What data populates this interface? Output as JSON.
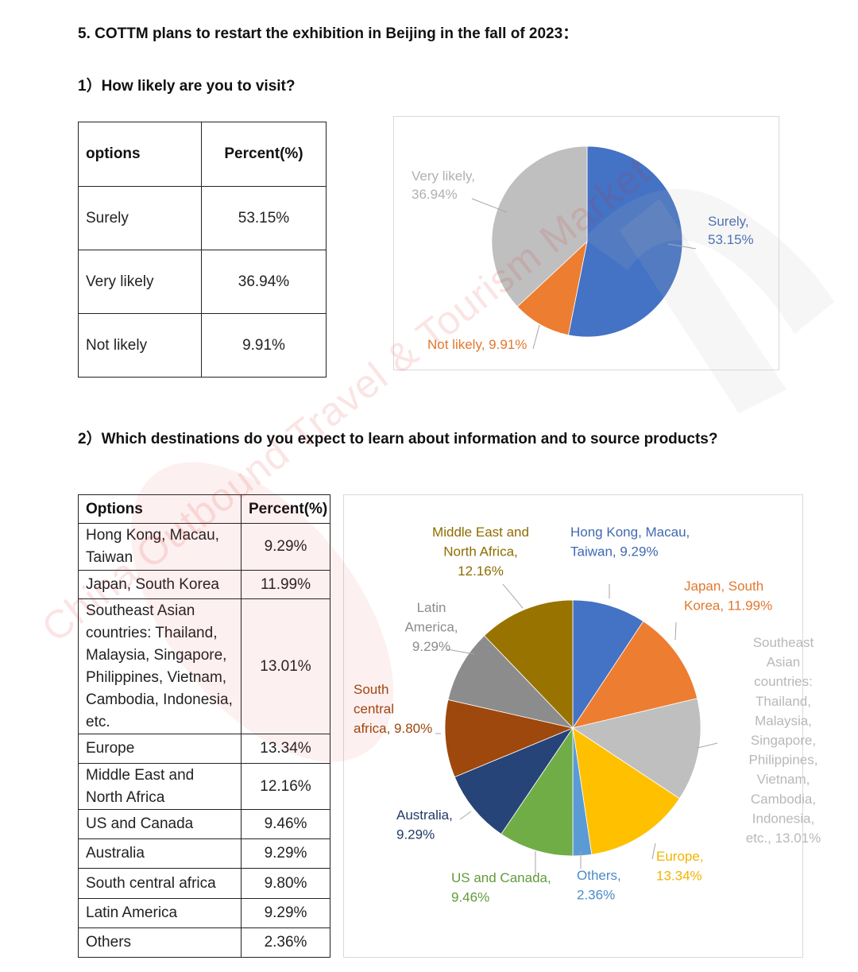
{
  "heading": "5. COTTM plans to restart the exhibition in Beijing in the fall of 2023：",
  "section1": {
    "question": "1）How likely are you to visit?",
    "table": {
      "headers": [
        "options",
        "Percent(%)"
      ],
      "rows": [
        {
          "option": "Surely",
          "percent": "53.15%"
        },
        {
          "option": "Very likely",
          "percent": "36.94%"
        },
        {
          "option": "Not likely",
          "percent": "9.91%"
        }
      ]
    }
  },
  "section2": {
    "question": "2）Which destinations do you expect to learn about information and to source products?",
    "table": {
      "headers": [
        "Options",
        "Percent(%)"
      ],
      "rows": [
        {
          "option": "Hong Kong, Macau, Taiwan",
          "percent": "9.29%"
        },
        {
          "option": "Japan, South Korea",
          "percent": "11.99%"
        },
        {
          "option": "Southeast Asian countries: Thailand, Malaysia, Singapore, Philippines, Vietnam, Cambodia, Indonesia, etc.",
          "percent": "13.01%"
        },
        {
          "option": "Europe",
          "percent": "13.34%"
        },
        {
          "option": "Middle East and North Africa",
          "percent": "12.16%"
        },
        {
          "option": "US and Canada",
          "percent": "9.46%"
        },
        {
          "option": "Australia",
          "percent": "9.29%"
        },
        {
          "option": "South central africa",
          "percent": "9.80%"
        },
        {
          "option": "Latin America",
          "percent": "9.29%"
        },
        {
          "option": "Others",
          "percent": "2.36%"
        }
      ]
    }
  },
  "watermark": {
    "text": "China Outbound Travel & Tourism Market",
    "logo": "cottm"
  },
  "chart_data": [
    {
      "type": "pie",
      "title": "",
      "categories": [
        "Surely",
        "Not likely",
        "Very likely"
      ],
      "values": [
        53.15,
        9.91,
        36.94
      ],
      "colors": [
        "#4472C4",
        "#ED7D31",
        "#BFBFBF"
      ],
      "labels": [
        {
          "lines": [
            "Surely,",
            "53.15%"
          ],
          "color": "#3F69B3"
        },
        {
          "lines": [
            "Not likely, 9.91%"
          ],
          "color": "#E2782F"
        },
        {
          "lines": [
            "Very likely,",
            "36.94%"
          ],
          "color": "#B0B0B0"
        }
      ],
      "legend": "none"
    },
    {
      "type": "pie",
      "title": "",
      "categories": [
        "Hong Kong, Macau, Taiwan",
        "Japan, South Korea",
        "Southeast Asian countries",
        "Europe",
        "Others",
        "US and Canada",
        "Australia",
        "South central africa",
        "Latin America",
        "Middle East and North Africa"
      ],
      "values": [
        9.29,
        11.99,
        13.01,
        13.34,
        2.36,
        9.46,
        9.29,
        9.8,
        9.29,
        12.16
      ],
      "colors": [
        "#4472C4",
        "#ED7D31",
        "#BFBFBF",
        "#FFC000",
        "#5B9BD5",
        "#70AD47",
        "#264478",
        "#9E480E",
        "#8C8C8C",
        "#997300"
      ],
      "labels": [
        {
          "lines": [
            "Hong Kong, Macau,",
            "Taiwan, 9.29%"
          ],
          "color": "#3F69B3"
        },
        {
          "lines": [
            "Japan, South",
            "Korea, 11.99%"
          ],
          "color": "#E2782F"
        },
        {
          "lines": [
            "Southeast",
            "Asian",
            "countries:",
            "Thailand,",
            "Malaysia,",
            "Singapore,",
            "Philippines,",
            "Vietnam,",
            "Cambodia,",
            "Indonesia,",
            "etc., 13.01%"
          ],
          "color": "#B8B8B8"
        },
        {
          "lines": [
            "Europe,",
            "13.34%"
          ],
          "color": "#F2B400"
        },
        {
          "lines": [
            "Others,",
            "2.36%"
          ],
          "color": "#4A8BC8"
        },
        {
          "lines": [
            "US and Canada,",
            "9.46%"
          ],
          "color": "#5F9C3B"
        },
        {
          "lines": [
            "Australia,",
            "9.29%"
          ],
          "color": "#203B66"
        },
        {
          "lines": [
            "South",
            "central",
            "africa, 9.80%"
          ],
          "color": "#9E480E"
        },
        {
          "lines": [
            "Latin",
            "America,",
            "9.29%"
          ],
          "color": "#8C8C8C"
        },
        {
          "lines": [
            "Middle East and",
            "North Africa,",
            "12.16%"
          ],
          "color": "#8F6C00"
        }
      ],
      "legend": "none"
    }
  ]
}
